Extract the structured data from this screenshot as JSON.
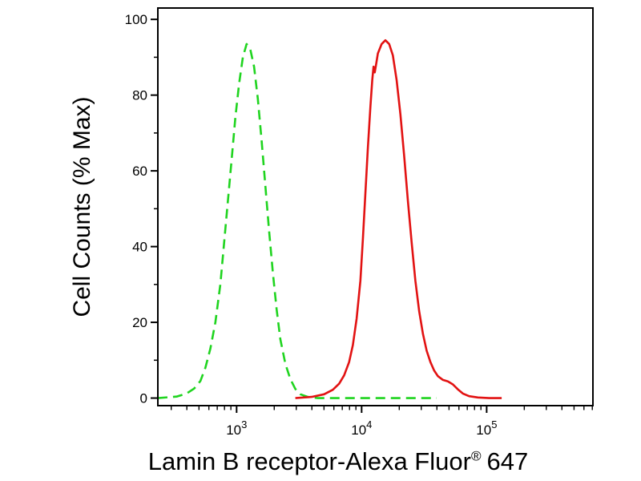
{
  "chart": {
    "ylabel": "Cell Counts (% Max)",
    "xlabel_parts": {
      "main": "Lamin B receptor-Alexa Fluor",
      "reg": "®",
      "suffix": "647"
    },
    "background": "#ffffff",
    "axis_color": "#000000"
  },
  "chart_data": {
    "type": "line",
    "subtype": "flow-cytometry-histogram-overlay",
    "x_scale": "log10",
    "x_range_log": [
      2.37,
      5.85
    ],
    "ylim": [
      0,
      100
    ],
    "y_ticks": [
      0,
      20,
      40,
      60,
      80,
      100
    ],
    "y_minor_ticks": [
      10,
      30,
      50,
      70,
      90
    ],
    "x_major_ticks_exponents": [
      3,
      4,
      5
    ],
    "x_minor_ticks_multiples": [
      2,
      3,
      4,
      5,
      6,
      7,
      8,
      9
    ],
    "grid": false,
    "legend": "none",
    "series": [
      {
        "name": "green dashed curve",
        "style": "dashed",
        "color": "#1fd41f",
        "peak_x": 1200,
        "peak_y": 93.5,
        "points_logx_y": [
          [
            2.37,
            0
          ],
          [
            2.52,
            0.4
          ],
          [
            2.6,
            1.2
          ],
          [
            2.66,
            2.5
          ],
          [
            2.71,
            4.5
          ],
          [
            2.75,
            8
          ],
          [
            2.79,
            13
          ],
          [
            2.83,
            20
          ],
          [
            2.87,
            30
          ],
          [
            2.9,
            41
          ],
          [
            2.93,
            52
          ],
          [
            2.96,
            63
          ],
          [
            2.99,
            74
          ],
          [
            3.02,
            83
          ],
          [
            3.05,
            90
          ],
          [
            3.08,
            93.5
          ],
          [
            3.11,
            92
          ],
          [
            3.14,
            87.5
          ],
          [
            3.17,
            79
          ],
          [
            3.2,
            68
          ],
          [
            3.23,
            56
          ],
          [
            3.26,
            44
          ],
          [
            3.29,
            33
          ],
          [
            3.32,
            23.5
          ],
          [
            3.35,
            15.5
          ],
          [
            3.39,
            9
          ],
          [
            3.43,
            5
          ],
          [
            3.47,
            2.4
          ],
          [
            3.51,
            1
          ],
          [
            3.57,
            0.3
          ],
          [
            3.65,
            0
          ],
          [
            4.0,
            0
          ],
          [
            4.3,
            0
          ],
          [
            4.6,
            0
          ]
        ]
      },
      {
        "name": "red solid curve",
        "style": "solid",
        "color": "#e21212",
        "peak_x": 15500,
        "peak_y": 94.5,
        "points_logx_y": [
          [
            3.47,
            0
          ],
          [
            3.6,
            0.3
          ],
          [
            3.7,
            1
          ],
          [
            3.77,
            2.2
          ],
          [
            3.82,
            3.8
          ],
          [
            3.86,
            6
          ],
          [
            3.9,
            9.5
          ],
          [
            3.93,
            14
          ],
          [
            3.96,
            21
          ],
          [
            3.99,
            31
          ],
          [
            4.01,
            42
          ],
          [
            4.03,
            54
          ],
          [
            4.05,
            66
          ],
          [
            4.07,
            77
          ],
          [
            4.085,
            84
          ],
          [
            4.095,
            87.5
          ],
          [
            4.105,
            86
          ],
          [
            4.115,
            88
          ],
          [
            4.13,
            91
          ],
          [
            4.16,
            93.5
          ],
          [
            4.19,
            94.5
          ],
          [
            4.22,
            93.5
          ],
          [
            4.25,
            90.5
          ],
          [
            4.28,
            84
          ],
          [
            4.31,
            75
          ],
          [
            4.34,
            64
          ],
          [
            4.37,
            52
          ],
          [
            4.4,
            41
          ],
          [
            4.43,
            31
          ],
          [
            4.46,
            23
          ],
          [
            4.49,
            17
          ],
          [
            4.52,
            12.5
          ],
          [
            4.55,
            9.5
          ],
          [
            4.58,
            7.3
          ],
          [
            4.61,
            5.8
          ],
          [
            4.65,
            4.8
          ],
          [
            4.69,
            4.4
          ],
          [
            4.73,
            3.6
          ],
          [
            4.77,
            2.3
          ],
          [
            4.81,
            1.2
          ],
          [
            4.86,
            0.5
          ],
          [
            4.93,
            0.15
          ],
          [
            5.02,
            0
          ],
          [
            5.12,
            0
          ]
        ]
      }
    ]
  }
}
